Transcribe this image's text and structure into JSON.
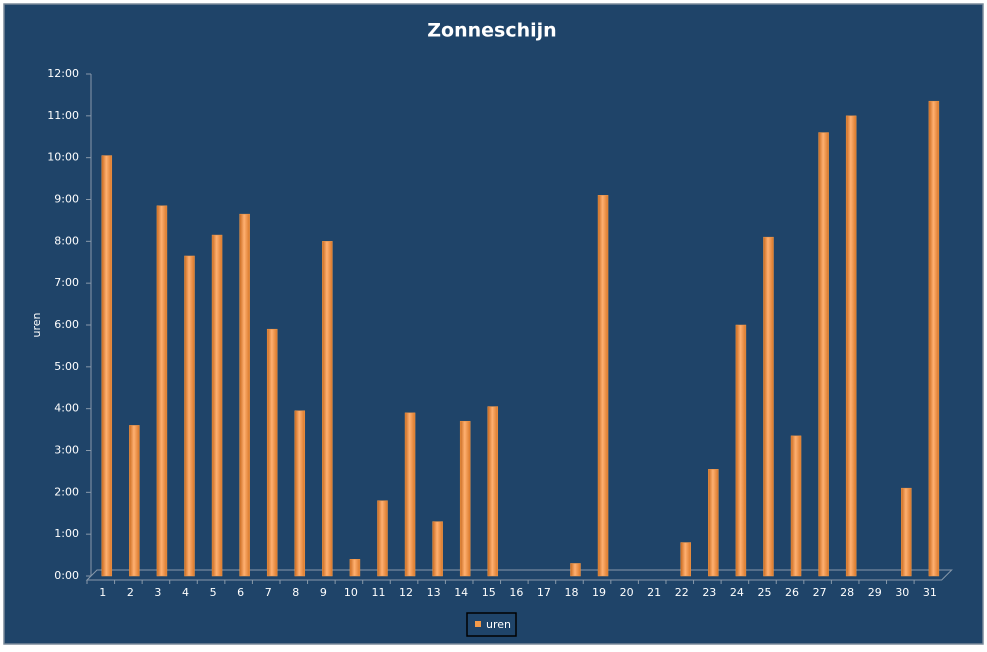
{
  "chart_data": {
    "type": "bar",
    "title": "Zonneschijn",
    "y_label": "uren",
    "categories": [
      "1",
      "2",
      "3",
      "4",
      "5",
      "6",
      "7",
      "8",
      "9",
      "10",
      "11",
      "12",
      "13",
      "14",
      "15",
      "16",
      "17",
      "18",
      "19",
      "20",
      "21",
      "22",
      "23",
      "24",
      "25",
      "26",
      "27",
      "28",
      "29",
      "30",
      "31"
    ],
    "series": [
      {
        "name": "uren",
        "color": "#f39a4a",
        "values": [
          10.05,
          3.6,
          8.85,
          7.65,
          8.15,
          8.65,
          5.9,
          3.95,
          8.0,
          0.4,
          1.8,
          3.9,
          1.3,
          3.7,
          4.05,
          0,
          0,
          0.3,
          9.1,
          0,
          0,
          0.8,
          2.55,
          6.0,
          8.1,
          3.35,
          10.6,
          11.0,
          0,
          2.1,
          11.35
        ]
      }
    ],
    "ylim": [
      0,
      12
    ],
    "yticks": [
      {
        "value": 0,
        "label": "0:00"
      },
      {
        "value": 1,
        "label": "1:00"
      },
      {
        "value": 2,
        "label": "2:00"
      },
      {
        "value": 3,
        "label": "3:00"
      },
      {
        "value": 4,
        "label": "4:00"
      },
      {
        "value": 5,
        "label": "5:00"
      },
      {
        "value": 6,
        "label": "6:00"
      },
      {
        "value": 7,
        "label": "7:00"
      },
      {
        "value": 8,
        "label": "8:00"
      },
      {
        "value": 9,
        "label": "9:00"
      },
      {
        "value": 10,
        "label": "10:00"
      },
      {
        "value": 11,
        "label": "11:00"
      },
      {
        "value": 12,
        "label": "12:00"
      }
    ],
    "grid": false,
    "legend": "bottom"
  }
}
